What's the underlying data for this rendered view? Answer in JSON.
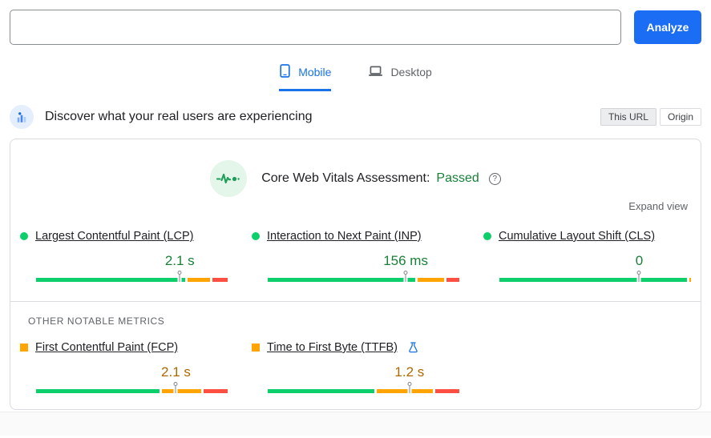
{
  "header": {
    "url_input": {
      "value": "",
      "placeholder": ""
    },
    "analyze_button": "Analyze"
  },
  "tabs": {
    "mobile": "Mobile",
    "desktop": "Desktop"
  },
  "rum": {
    "heading": "Discover what your real users are experiencing",
    "this_url": "This URL",
    "origin": "Origin"
  },
  "assessment": {
    "title": "Core Web Vitals Assessment:",
    "result": "Passed",
    "help": "?",
    "expand": "Expand view"
  },
  "other_heading": "OTHER NOTABLE METRICS",
  "core_metrics": [
    {
      "label": "Largest Contentful Paint (LCP)",
      "value": "2.1 s",
      "rating": "good",
      "shape": "dot",
      "marker_pct": 75,
      "distribution": {
        "good": 80,
        "ni": 12,
        "poor": 8
      }
    },
    {
      "label": "Interaction to Next Paint (INP)",
      "value": "156 ms",
      "rating": "good",
      "shape": "dot",
      "marker_pct": 72,
      "distribution": {
        "good": 79,
        "ni": 14,
        "poor": 7
      }
    },
    {
      "label": "Cumulative Layout Shift (CLS)",
      "value": "0",
      "rating": "good",
      "shape": "dot",
      "marker_pct": 73,
      "distribution": {
        "good": 99,
        "ni": 1,
        "poor": 0
      }
    }
  ],
  "other_metrics": [
    {
      "label": "First Contentful Paint (FCP)",
      "value": "2.1 s",
      "rating": "ni",
      "shape": "square",
      "marker_pct": 73,
      "distribution": {
        "good": 66,
        "ni": 21,
        "poor": 13
      }
    },
    {
      "label": "Time to First Byte (TTFB)",
      "value": "1.2 s",
      "rating": "ni",
      "shape": "square",
      "marker_pct": 74,
      "experimental": true,
      "distribution": {
        "good": 57,
        "ni": 30,
        "poor": 13
      }
    }
  ],
  "colors": {
    "accent": "#1a73e8",
    "passed": "#188038",
    "bar_good": "#0cce6b",
    "bar_ni": "#ffa400",
    "bar_poor": "#ff4e42",
    "value_good": "#188038",
    "value_ni": "#ad6800"
  }
}
